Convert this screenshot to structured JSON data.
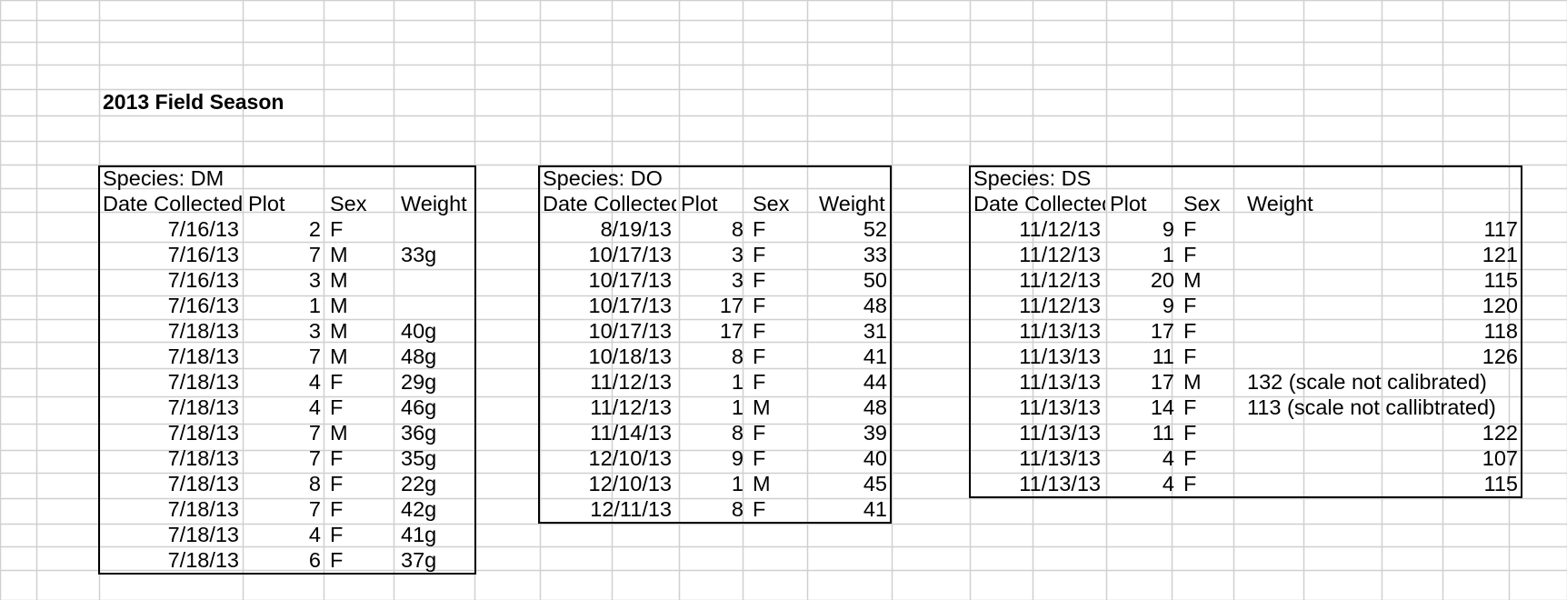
{
  "sheet": {
    "title": "2013 Field Season"
  },
  "tables": [
    {
      "name": "DM",
      "species_label": "Species: DM",
      "headers": [
        "Date Collected",
        "Plot",
        "Sex",
        "Weight"
      ],
      "rows": [
        [
          "7/16/13",
          "2",
          "F",
          ""
        ],
        [
          "7/16/13",
          "7",
          "M",
          "33g"
        ],
        [
          "7/16/13",
          "3",
          "M",
          ""
        ],
        [
          "7/16/13",
          "1",
          "M",
          ""
        ],
        [
          "7/18/13",
          "3",
          "M",
          "40g"
        ],
        [
          "7/18/13",
          "7",
          "M",
          "48g"
        ],
        [
          "7/18/13",
          "4",
          "F",
          "29g"
        ],
        [
          "7/18/13",
          "4",
          "F",
          "46g"
        ],
        [
          "7/18/13",
          "7",
          "M",
          "36g"
        ],
        [
          "7/18/13",
          "7",
          "F",
          "35g"
        ],
        [
          "7/18/13",
          "8",
          "F",
          "22g"
        ],
        [
          "7/18/13",
          "7",
          "F",
          "42g"
        ],
        [
          "7/18/13",
          "4",
          "F",
          "41g"
        ],
        [
          "7/18/13",
          "6",
          "F",
          "37g"
        ]
      ]
    },
    {
      "name": "DO",
      "species_label": "Species: DO",
      "headers": [
        "Date Collected",
        "Plot",
        "Sex",
        "Weight"
      ],
      "rows": [
        [
          "8/19/13",
          "8",
          "F",
          "52"
        ],
        [
          "10/17/13",
          "3",
          "F",
          "33"
        ],
        [
          "10/17/13",
          "3",
          "F",
          "50"
        ],
        [
          "10/17/13",
          "17",
          "F",
          "48"
        ],
        [
          "10/17/13",
          "17",
          "F",
          "31"
        ],
        [
          "10/18/13",
          "8",
          "F",
          "41"
        ],
        [
          "11/12/13",
          "1",
          "F",
          "44"
        ],
        [
          "11/12/13",
          "1",
          "M",
          "48"
        ],
        [
          "11/14/13",
          "8",
          "F",
          "39"
        ],
        [
          "12/10/13",
          "9",
          "F",
          "40"
        ],
        [
          "12/10/13",
          "1",
          "M",
          "45"
        ],
        [
          "12/11/13",
          "8",
          "F",
          "41"
        ]
      ]
    },
    {
      "name": "DS",
      "species_label": "Species: DS",
      "headers": [
        "Date Collected",
        "Plot",
        "Sex",
        "Weight"
      ],
      "rows": [
        [
          "11/12/13",
          "9",
          "F",
          "117"
        ],
        [
          "11/12/13",
          "1",
          "F",
          "121"
        ],
        [
          "11/12/13",
          "20",
          "M",
          "115"
        ],
        [
          "11/12/13",
          "9",
          "F",
          "120"
        ],
        [
          "11/13/13",
          "17",
          "F",
          "118"
        ],
        [
          "11/13/13",
          "11",
          "F",
          "126"
        ],
        [
          "11/13/13",
          "17",
          "M",
          "132 (scale not calibrated)"
        ],
        [
          "11/13/13",
          "14",
          "F",
          "113 (scale not callibtrated)"
        ],
        [
          "11/13/13",
          "11",
          "F",
          "122"
        ],
        [
          "11/13/13",
          "4",
          "F",
          "107"
        ],
        [
          "11/13/13",
          "4",
          "F",
          "115"
        ]
      ]
    }
  ]
}
